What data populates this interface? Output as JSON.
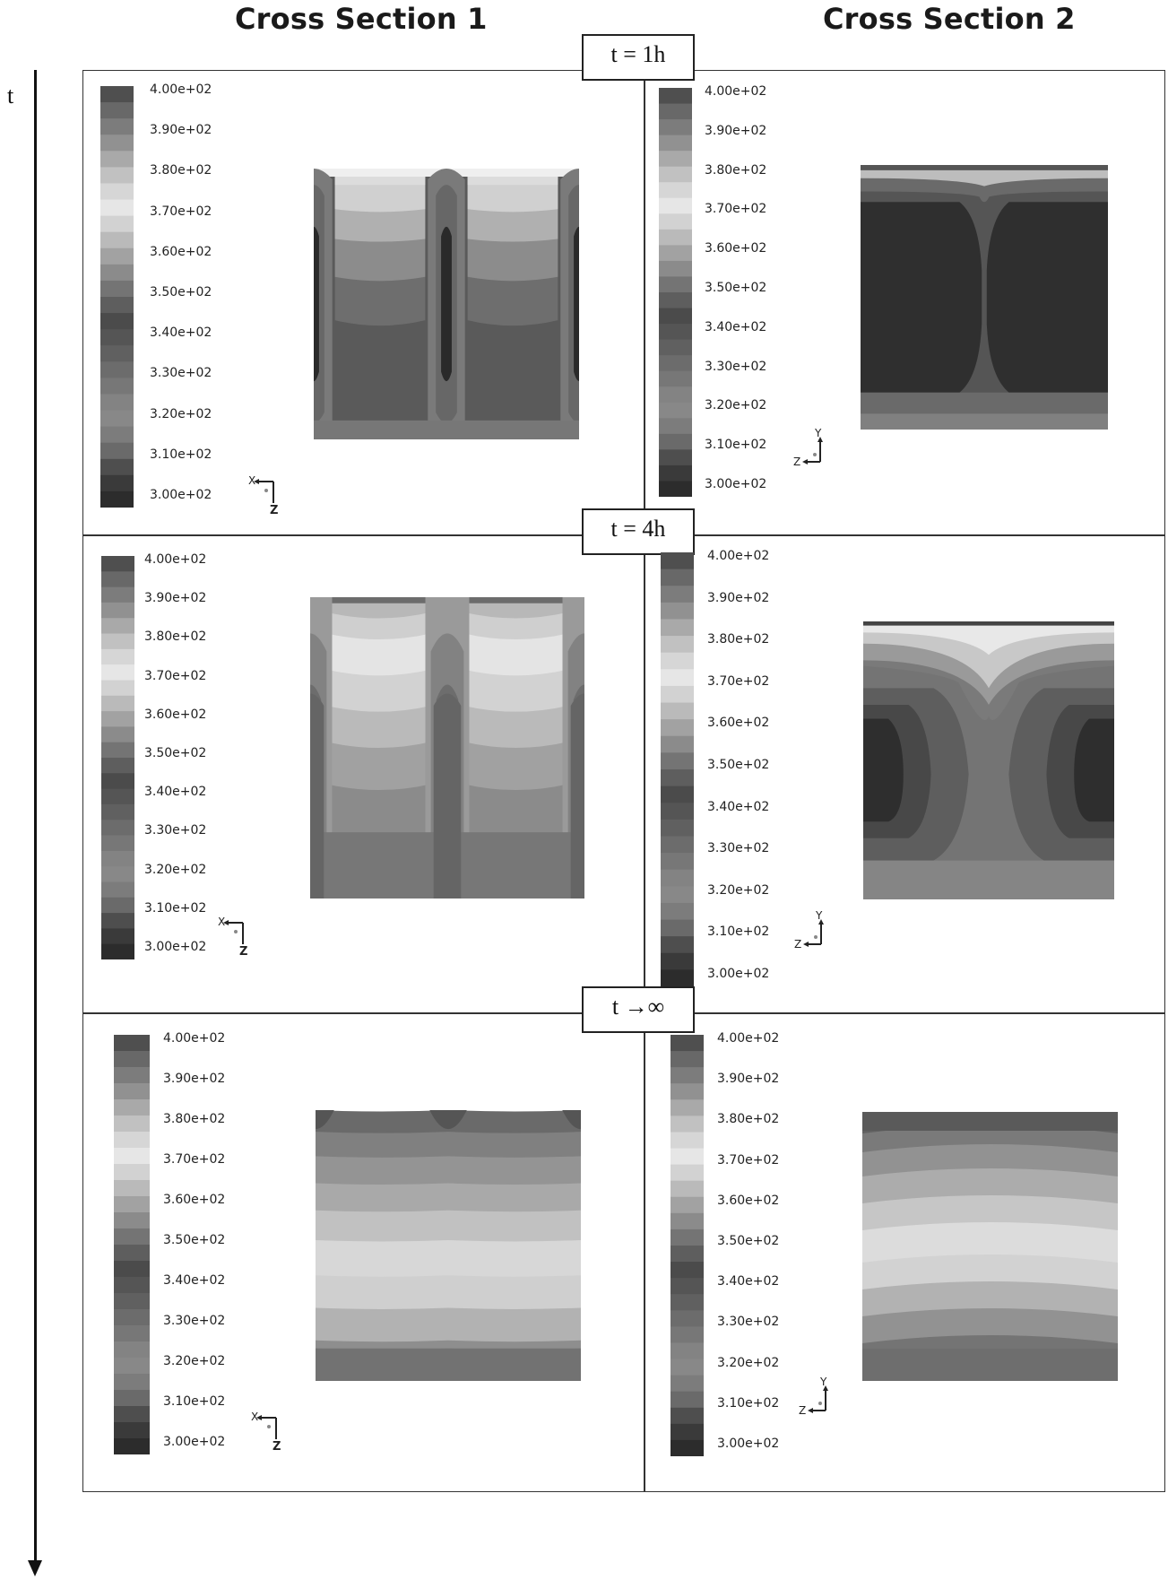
{
  "column_titles": [
    "Cross Section 1",
    "Cross Section 2"
  ],
  "time_axis_label": "t",
  "time_labels": [
    "t = 1h",
    "t = 4h",
    "t →∞"
  ],
  "colorbar_ticks": [
    "4.00e+02",
    "3.90e+02",
    "3.80e+02",
    "3.70e+02",
    "3.60e+02",
    "3.50e+02",
    "3.40e+02",
    "3.30e+02",
    "3.20e+02",
    "3.10e+02",
    "3.00e+02"
  ],
  "colorbar_shades": [
    "#4f4f4f",
    "#686868",
    "#7c7c7c",
    "#919191",
    "#a9a9a9",
    "#c1c1c1",
    "#d6d6d6",
    "#e6e6e6",
    "#d2d2d2",
    "#bababa",
    "#a2a2a2",
    "#8b8b8b",
    "#747474",
    "#5e5e5e",
    "#4b4b4b",
    "#555555",
    "#606060",
    "#6c6c6c",
    "#777777",
    "#838383",
    "#888888",
    "#7c7c7c",
    "#6a6a6a",
    "#4e4e4e",
    "#3a3a3a",
    "#2c2c2c"
  ],
  "axis_icons": {
    "cross_section_1": {
      "horizontal": "X",
      "vertical": "Z"
    },
    "cross_section_2": {
      "horizontal": "Z",
      "vertical": "Y"
    }
  }
}
